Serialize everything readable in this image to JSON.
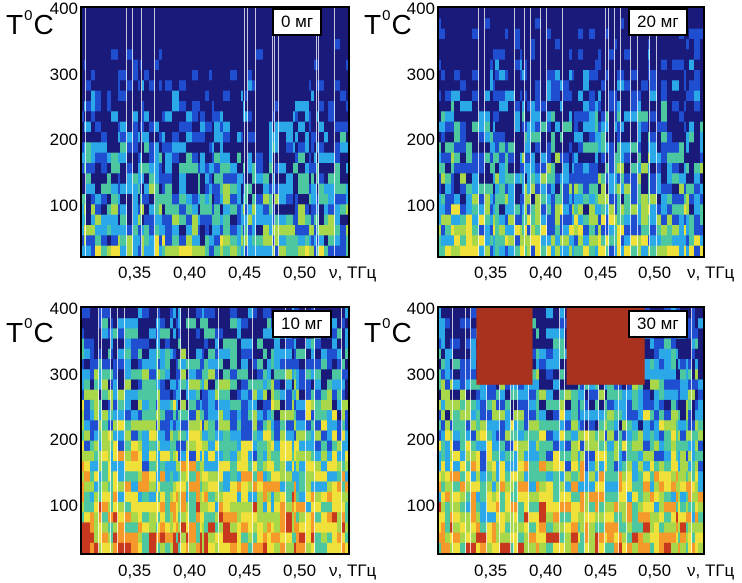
{
  "chart_data": [
    {
      "type": "heatmap",
      "panel_label": "0 мг",
      "ylabel": "T0C",
      "ylabel_base": "T",
      "ylabel_sup": "0",
      "ylabel_unit": "C",
      "xlabel": "ν, ТГц",
      "xticks": [
        "0,35",
        "0,40",
        "0,45",
        "0,50"
      ],
      "yticks": [
        "400",
        "300",
        "200",
        "100"
      ],
      "xlim": [
        0.3,
        0.54
      ],
      "ylim": [
        30,
        400
      ],
      "high_band": [],
      "palette": "navy-blue-cyan-green-yellow-orange-red"
    },
    {
      "type": "heatmap",
      "panel_label": "20 мг",
      "ylabel": "T0C",
      "ylabel_base": "T",
      "ylabel_sup": "0",
      "ylabel_unit": "C",
      "xlabel": "ν, ТГц",
      "xticks": [
        "0,35",
        "0,40",
        "0,45",
        "0,50"
      ],
      "yticks": [
        "400",
        "300",
        "200",
        "100"
      ],
      "xlim": [
        0.3,
        0.54
      ],
      "ylim": [
        30,
        400
      ],
      "high_band": [],
      "palette": "navy-blue-cyan-green-yellow-orange-red"
    },
    {
      "type": "heatmap",
      "panel_label": "10 мг",
      "ylabel": "T0C",
      "ylabel_base": "T",
      "ylabel_sup": "0",
      "ylabel_unit": "C",
      "xlabel": "ν, ТГц",
      "xticks": [
        "0,35",
        "0,40",
        "0,45",
        "0,50"
      ],
      "yticks": [
        "400",
        "300",
        "200",
        "100"
      ],
      "xlim": [
        0.3,
        0.54
      ],
      "ylim": [
        30,
        400
      ],
      "high_band": [],
      "palette": "navy-blue-cyan-green-yellow-orange-red"
    },
    {
      "type": "heatmap",
      "panel_label": "30 мг",
      "ylabel": "T0C",
      "ylabel_base": "T",
      "ylabel_sup": "0",
      "ylabel_unit": "C",
      "xlabel": "ν, ТГц",
      "xticks": [
        "0,35",
        "0,40",
        "0,45",
        "0,50"
      ],
      "yticks": [
        "400",
        "300",
        "200",
        "100"
      ],
      "xlim": [
        0.3,
        0.54
      ],
      "ylim": [
        30,
        400
      ],
      "high_band": [
        [
          0.334,
          0.385,
          284,
          400
        ],
        [
          0.416,
          0.487,
          284,
          400
        ]
      ],
      "palette": "navy-blue-cyan-green-yellow-orange-red"
    }
  ],
  "colors": {
    "palette": [
      "#1a1a7a",
      "#1f4fd0",
      "#2aa8e8",
      "#4cc7a0",
      "#a8d84a",
      "#f0e03a",
      "#f59a2a",
      "#c8381f"
    ],
    "saturated_band": "#a8321e"
  }
}
